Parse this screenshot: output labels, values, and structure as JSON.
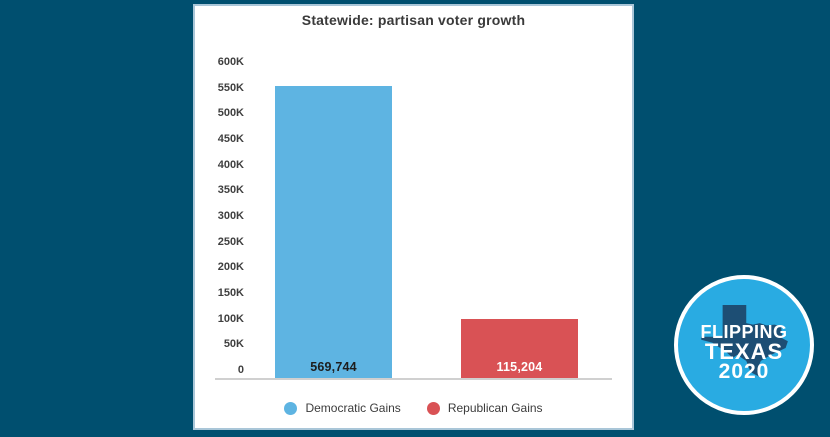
{
  "page": {
    "background_color": "#004F6F"
  },
  "chart_data": {
    "type": "bar",
    "title": "Statewide: partisan voter growth",
    "categories": [
      "Democratic Gains",
      "Republican Gains"
    ],
    "values": [
      569744,
      115204
    ],
    "bar_labels": [
      "569,744",
      "115,204"
    ],
    "bar_colors": [
      "#5EB4E2",
      "#D95255"
    ],
    "bar_label_colors": [
      "#1d1d1d",
      "#ffffff"
    ],
    "xlabel": "",
    "ylabel": "",
    "ylim": [
      0,
      600000
    ],
    "ytick_interval": 50000,
    "ytick_labels": [
      "0",
      "50K",
      "100K",
      "150K",
      "200K",
      "250K",
      "300K",
      "350K",
      "400K",
      "450K",
      "500K",
      "550K",
      "600K"
    ],
    "grid": false,
    "legend_position": "bottom",
    "legend": [
      {
        "label": "Democratic Gains",
        "color": "#5EB4E2"
      },
      {
        "label": "Republican Gains",
        "color": "#D95255"
      }
    ]
  },
  "badge": {
    "lines": [
      "FLIPPING",
      "TEXAS",
      "2020"
    ],
    "circle_color": "#29ABE2",
    "ring_color": "#FFFFFF",
    "texas_color": "#1D4E74"
  }
}
